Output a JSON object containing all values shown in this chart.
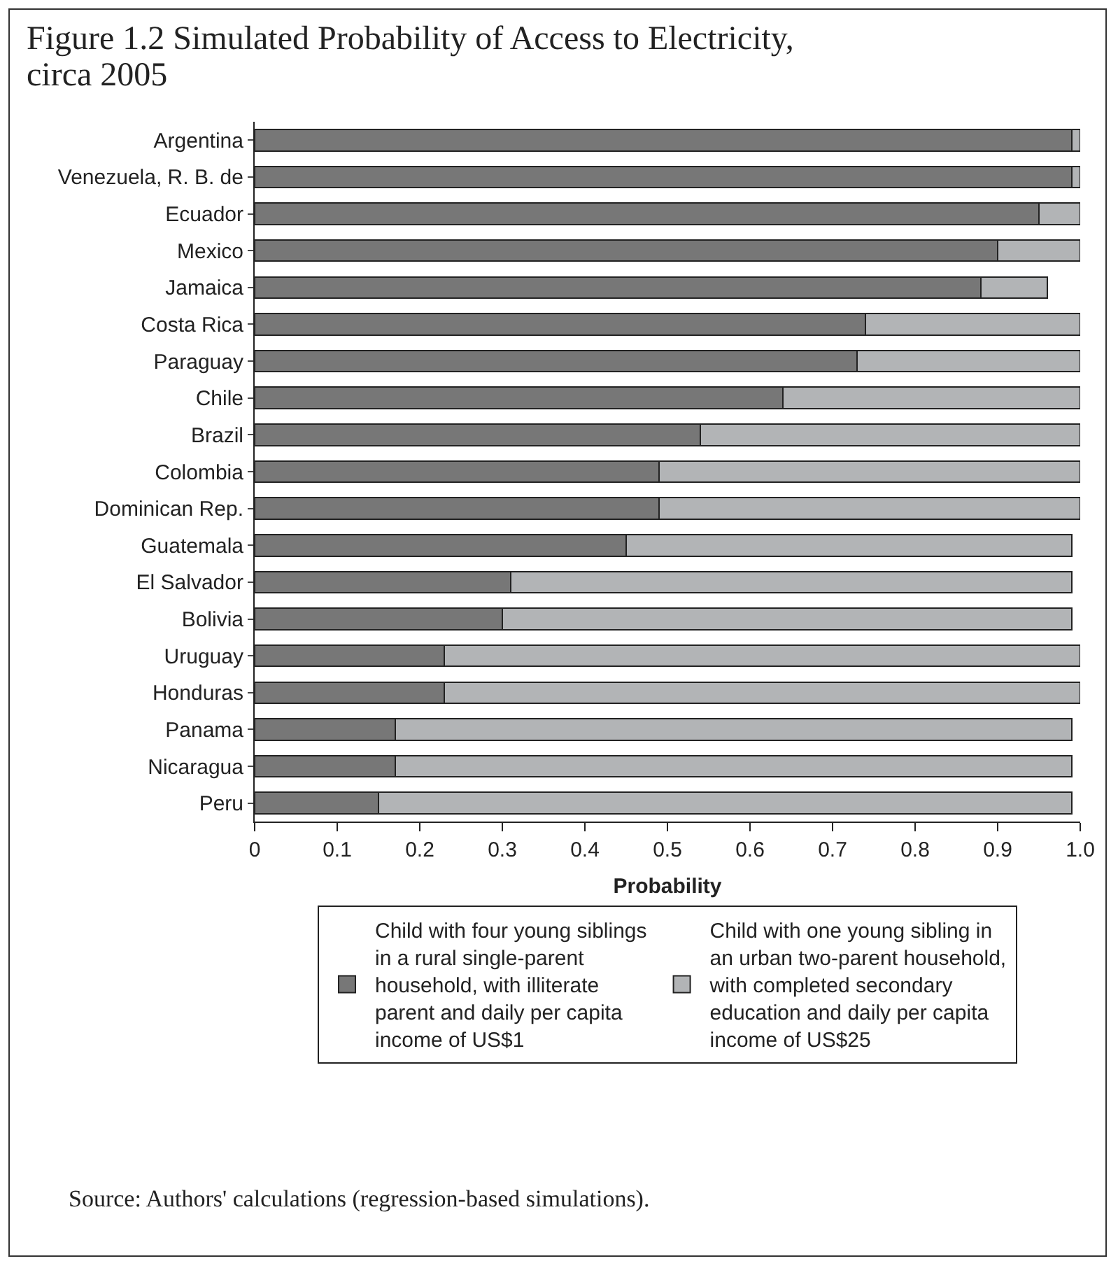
{
  "chart_data": {
    "type": "bar",
    "orientation": "horizontal",
    "stacked": true,
    "title": "Figure 1.2 Simulated Probability of Access to Electricity, circa 2005",
    "xlabel": "Probability",
    "categories": [
      "Argentina",
      "Venezuela, R. B. de",
      "Ecuador",
      "Mexico",
      "Jamaica",
      "Costa Rica",
      "Paraguay",
      "Chile",
      "Brazil",
      "Colombia",
      "Dominican Rep.",
      "Guatemala",
      "El Salvador",
      "Bolivia",
      "Uruguay",
      "Honduras",
      "Panama",
      "Nicaragua",
      "Peru"
    ],
    "series": [
      {
        "name": "Child with four young siblings in a rural single-parent household, with illiterate parent and daily per capita income of US$1",
        "color": "#777777",
        "values": [
          0.99,
          0.99,
          0.95,
          0.9,
          0.88,
          0.74,
          0.73,
          0.64,
          0.54,
          0.49,
          0.49,
          0.45,
          0.31,
          0.3,
          0.23,
          0.23,
          0.17,
          0.17,
          0.15
        ]
      },
      {
        "name": "Child with one young sibling in an urban two-parent household, with completed secondary education and daily per capita income of US$25",
        "color": "#b2b4b6",
        "values": [
          0.01,
          0.01,
          0.05,
          0.1,
          0.08,
          0.26,
          0.27,
          0.36,
          0.46,
          0.51,
          0.51,
          0.54,
          0.68,
          0.69,
          0.77,
          0.77,
          0.82,
          0.82,
          0.84
        ]
      }
    ],
    "xlim": [
      0,
      1
    ],
    "xticks": [
      0,
      0.1,
      0.2,
      0.3,
      0.4,
      0.5,
      0.6,
      0.7,
      0.8,
      0.9,
      {
        "value": 1,
        "label": "1.0"
      }
    ],
    "grid": false,
    "legend": "bottom",
    "annotations": [
      "Source: Authors' calculations (regression-based simulations)."
    ]
  }
}
